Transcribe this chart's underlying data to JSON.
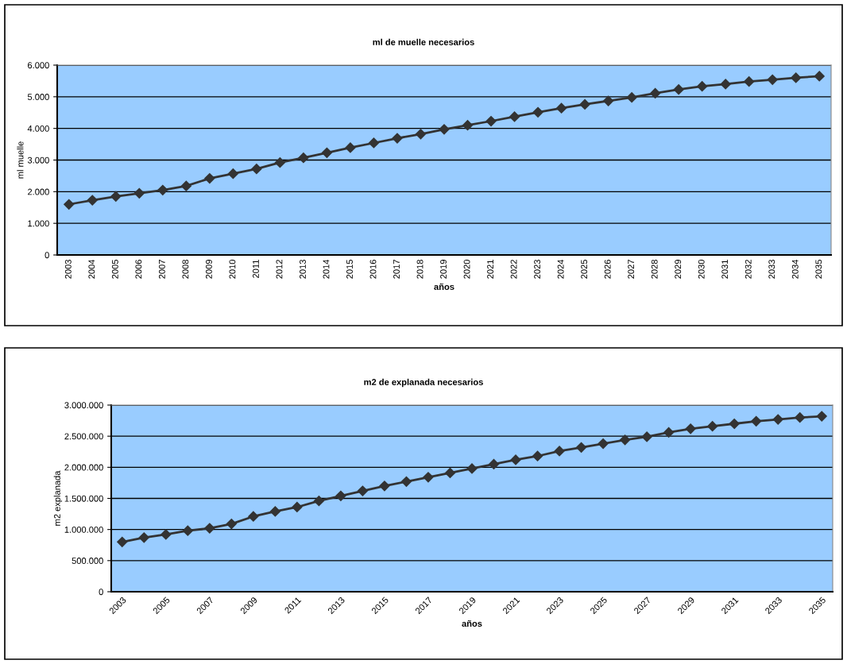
{
  "chart_data": [
    {
      "type": "line",
      "title": "ml de muelle necesarios",
      "xlabel": "años",
      "ylabel": "ml muelle",
      "categories": [
        "2003",
        "2004",
        "2005",
        "2006",
        "2007",
        "2008",
        "2009",
        "2010",
        "2011",
        "2012",
        "2013",
        "2014",
        "2015",
        "2016",
        "2017",
        "2018",
        "2019",
        "2020",
        "2021",
        "2022",
        "2023",
        "2024",
        "2025",
        "2026",
        "2027",
        "2028",
        "2029",
        "2030",
        "2031",
        "2032",
        "2033",
        "2034",
        "2035"
      ],
      "series": [
        {
          "color": "#333333",
          "values": [
            1600,
            1730,
            1850,
            1950,
            2050,
            2180,
            2420,
            2570,
            2720,
            2920,
            3070,
            3230,
            3390,
            3540,
            3690,
            3820,
            3970,
            4100,
            4230,
            4370,
            4510,
            4640,
            4760,
            4870,
            4980,
            5110,
            5230,
            5330,
            5400,
            5480,
            5540,
            5600,
            5650
          ]
        }
      ],
      "ylim": [
        0,
        6000
      ],
      "yticks": [
        0,
        {
          "value": 1000,
          "label": "1.000"
        },
        {
          "value": 2000,
          "label": "2.000"
        },
        {
          "value": 3000,
          "label": "3.000"
        },
        {
          "value": 4000,
          "label": "4.000"
        },
        {
          "value": 5000,
          "label": "5.000"
        },
        {
          "value": 6000,
          "label": "6.000"
        }
      ],
      "grid": "y",
      "marker": "diamond",
      "line_style": "solid"
    },
    {
      "type": "line",
      "title": "m2 de explanada necesarios",
      "xlabel": "años",
      "ylabel": "m2 explanada",
      "categories": [
        "2003",
        null,
        "2005",
        null,
        "2007",
        null,
        "2009",
        null,
        "2011",
        null,
        "2013",
        null,
        "2015",
        null,
        "2017",
        null,
        "2019",
        null,
        "2021",
        null,
        "2023",
        null,
        "2025",
        null,
        "2027",
        null,
        "2029",
        null,
        "2031",
        null,
        "2033",
        null,
        "2035"
      ],
      "series": [
        {
          "color": "#333333",
          "values": [
            800000,
            870000,
            920000,
            980000,
            1020000,
            1090000,
            1210000,
            1290000,
            1360000,
            1460000,
            1540000,
            1620000,
            1700000,
            1770000,
            1840000,
            1910000,
            1980000,
            2050000,
            2120000,
            2180000,
            2260000,
            2320000,
            2380000,
            2440000,
            2490000,
            2560000,
            2620000,
            2660000,
            2700000,
            2740000,
            2770000,
            2800000,
            2820000
          ]
        }
      ],
      "ylim": [
        0,
        3000000
      ],
      "yticks": [
        0,
        {
          "value": 500000,
          "label": "500.000"
        },
        {
          "value": 1000000,
          "label": "1.000.000"
        },
        {
          "value": 1500000,
          "label": "1.500.000"
        },
        {
          "value": 2000000,
          "label": "2.000.000"
        },
        {
          "value": 2500000,
          "label": "2.500.000"
        },
        {
          "value": 3000000,
          "label": "3.000.000"
        }
      ],
      "grid": "y",
      "marker": "diamond",
      "line_style": "solid"
    }
  ]
}
